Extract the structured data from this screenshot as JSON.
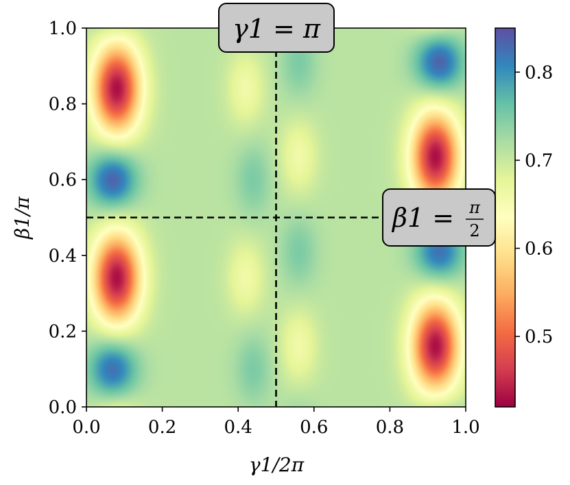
{
  "chart_data": {
    "type": "heatmap",
    "xlabel": "γ1/2π",
    "ylabel": "β1/π",
    "xlim": [
      0.0,
      1.0
    ],
    "ylim": [
      0.0,
      1.0
    ],
    "x_ticks": [
      "0.0",
      "0.2",
      "0.4",
      "0.6",
      "0.8",
      "1.0"
    ],
    "y_ticks": [
      "0.0",
      "0.2",
      "0.4",
      "0.6",
      "0.8",
      "1.0"
    ],
    "colorbar": {
      "range": [
        0.42,
        0.85
      ],
      "colormap": "Spectral",
      "ticks": [
        "0.5",
        "0.6",
        "0.7",
        "0.8"
      ],
      "tick_values": [
        0.5,
        0.6,
        0.7,
        0.8
      ]
    },
    "base_value": 0.71,
    "features": [
      {
        "kind": "minimum",
        "x": 0.08,
        "y": 0.84,
        "value": 0.43
      },
      {
        "kind": "minimum",
        "x": 0.08,
        "y": 0.34,
        "value": 0.43
      },
      {
        "kind": "minimum",
        "x": 0.92,
        "y": 0.66,
        "value": 0.43
      },
      {
        "kind": "minimum",
        "x": 0.92,
        "y": 0.16,
        "value": 0.43
      },
      {
        "kind": "maximum",
        "x": 0.07,
        "y": 0.6,
        "value": 0.84
      },
      {
        "kind": "maximum",
        "x": 0.07,
        "y": 0.1,
        "value": 0.83
      },
      {
        "kind": "maximum",
        "x": 0.93,
        "y": 0.91,
        "value": 0.84
      },
      {
        "kind": "maximum",
        "x": 0.93,
        "y": 0.41,
        "value": 0.83
      },
      {
        "kind": "ridge",
        "x": 0.42,
        "y": 0.84,
        "value": 0.66
      },
      {
        "kind": "ridge",
        "x": 0.42,
        "y": 0.34,
        "value": 0.66
      },
      {
        "kind": "ridge",
        "x": 0.56,
        "y": 0.66,
        "value": 0.66
      },
      {
        "kind": "ridge",
        "x": 0.56,
        "y": 0.16,
        "value": 0.66
      },
      {
        "kind": "valley",
        "x": 0.44,
        "y": 0.6,
        "value": 0.75
      },
      {
        "kind": "valley",
        "x": 0.44,
        "y": 0.1,
        "value": 0.75
      },
      {
        "kind": "valley",
        "x": 0.56,
        "y": 0.91,
        "value": 0.75
      },
      {
        "kind": "valley",
        "x": 0.56,
        "y": 0.41,
        "value": 0.75
      }
    ],
    "reference_lines": [
      {
        "orientation": "vertical",
        "x": 0.5,
        "style": "dashed"
      },
      {
        "orientation": "horizontal",
        "y": 0.5,
        "style": "dashed"
      }
    ],
    "annotations": [
      {
        "id": "gamma",
        "text_main": "γ1 = π"
      },
      {
        "id": "beta",
        "text_main": "β1 = ",
        "text_num": "π",
        "text_den": "2"
      }
    ],
    "grid": false
  }
}
